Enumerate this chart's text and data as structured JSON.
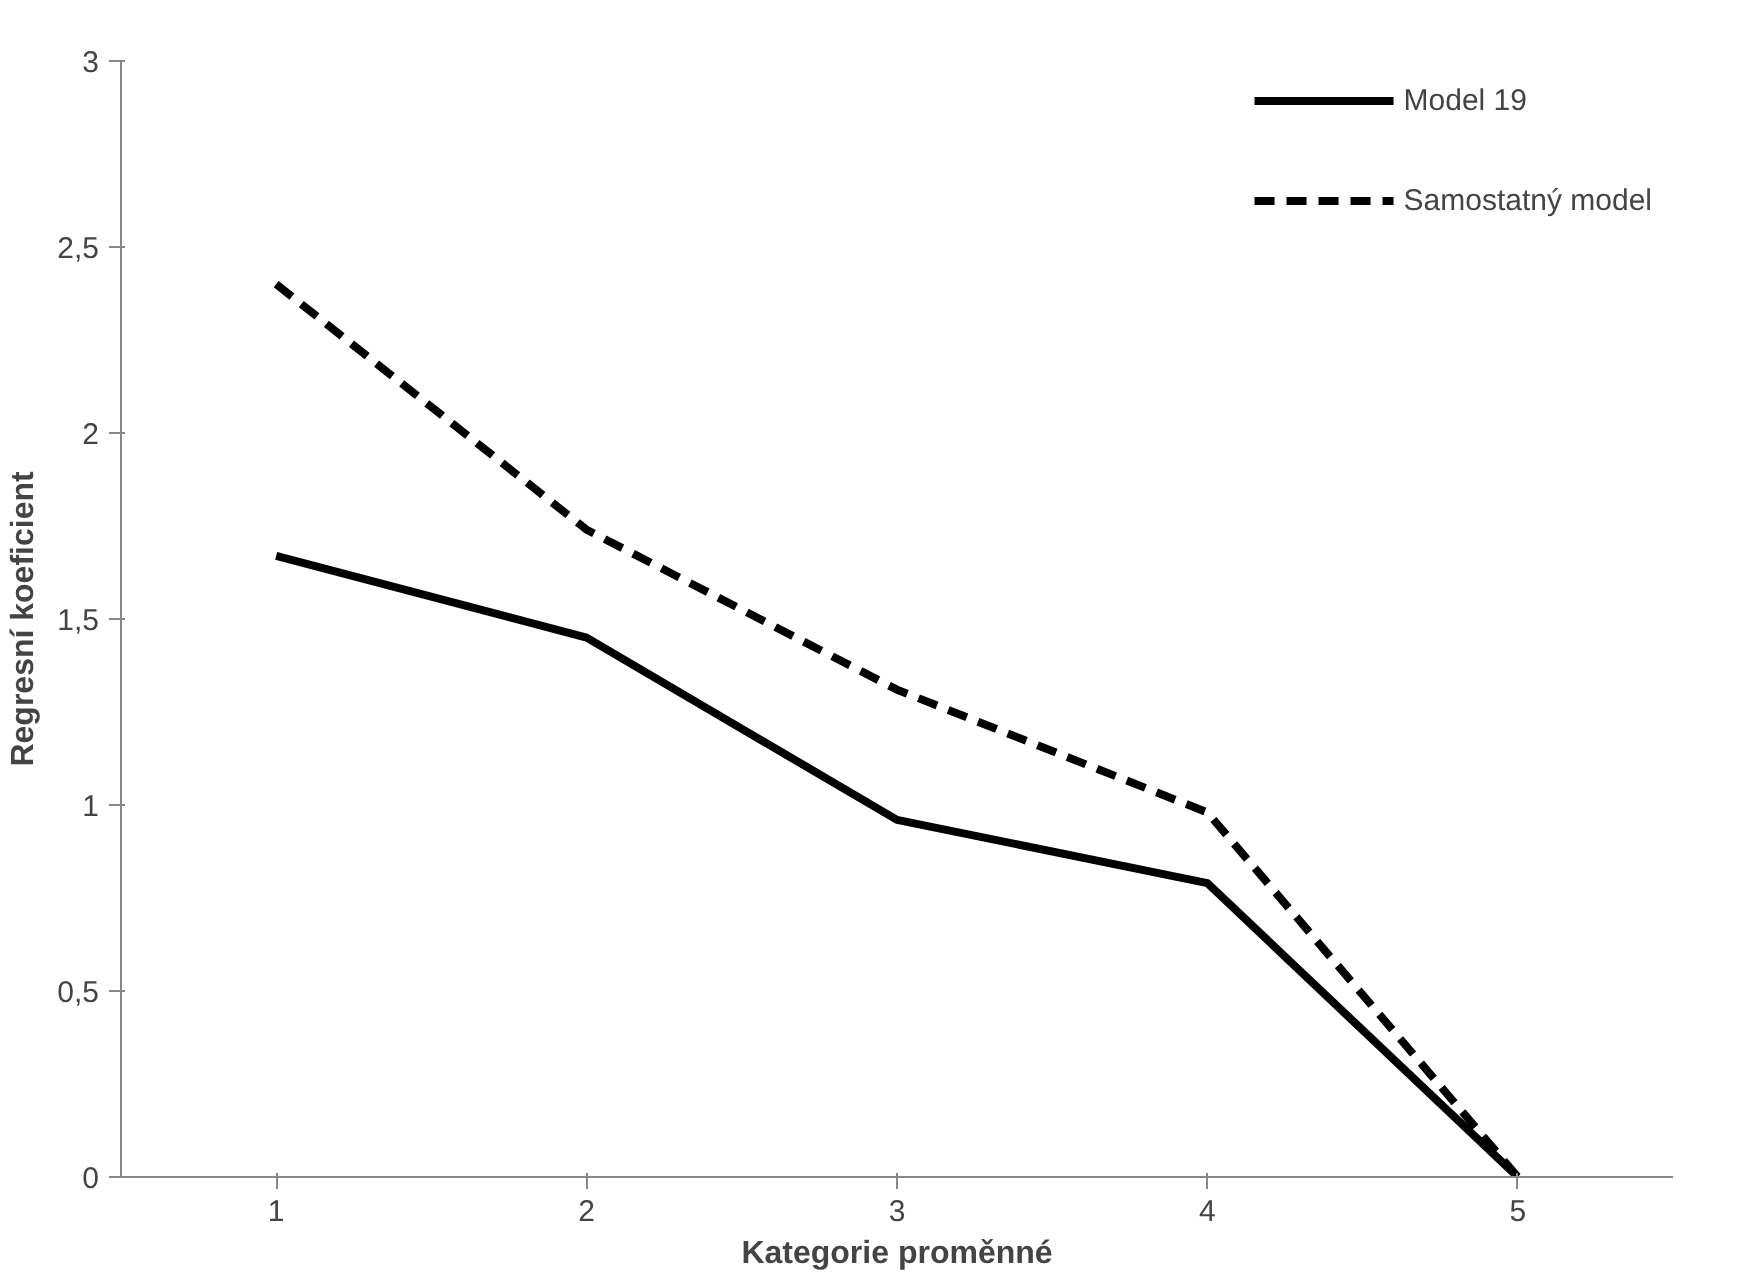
{
  "chart_data": {
    "type": "line",
    "xlabel": "Kategorie proměnné",
    "ylabel": "Regresní koeficient",
    "categories": [
      "1",
      "2",
      "3",
      "4",
      "5"
    ],
    "series": [
      {
        "name": "Model 19",
        "color": "#000000",
        "line_style": "solid",
        "values": [
          1.67,
          1.45,
          0.96,
          0.79,
          0
        ]
      },
      {
        "name": "Samostatný model",
        "color": "#000000",
        "line_style": "dashed",
        "values": [
          2.4,
          1.74,
          1.31,
          0.98,
          0
        ]
      }
    ],
    "ylim": [
      0,
      3
    ],
    "yticks": [
      0,
      {
        "value": 0.5,
        "label": "0,5"
      },
      1,
      {
        "value": 1.5,
        "label": "1,5"
      },
      2,
      {
        "value": 2.5,
        "label": "2,5"
      },
      3
    ],
    "grid": false,
    "legend": "top right",
    "marker": "none"
  }
}
